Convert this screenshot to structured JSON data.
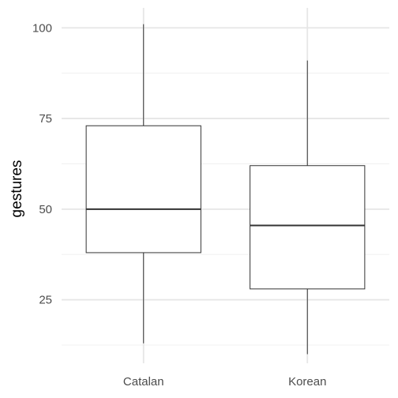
{
  "chart_data": {
    "type": "boxplot",
    "title": "",
    "xlabel": "",
    "ylabel": "gestures",
    "ylim": [
      7.5,
      105.5
    ],
    "yticks": [
      25,
      50,
      75,
      100
    ],
    "ytick_labels": [
      "25",
      "50",
      "75",
      "100"
    ],
    "grid": true,
    "theme": "minimal",
    "categories": [
      "Catalan",
      "Korean"
    ],
    "boxes": [
      {
        "category": "Catalan",
        "min": 13,
        "q1": 38,
        "median": 50,
        "q3": 73,
        "max": 101
      },
      {
        "category": "Korean",
        "min": 10,
        "q1": 28,
        "median": 45.5,
        "q3": 62,
        "max": 91
      }
    ]
  }
}
